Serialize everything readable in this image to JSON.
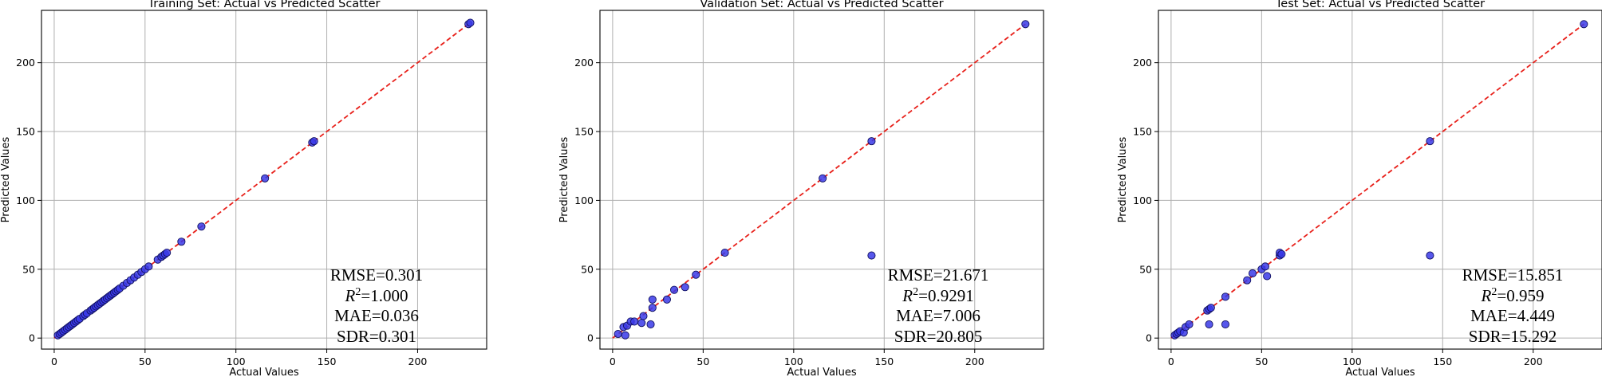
{
  "chart_data": [
    {
      "type": "scatter",
      "title": "Training Set: Actual vs Predicted Scatter",
      "xlabel": "Actual Values",
      "ylabel": "Predicted Values",
      "xlim": [
        -7,
        238
      ],
      "ylim": [
        -8,
        238
      ],
      "xticks": [
        0,
        50,
        100,
        150,
        200
      ],
      "yticks": [
        0,
        50,
        100,
        150,
        200
      ],
      "grid": true,
      "reference_line": "y = x (red dashed)",
      "points": [
        [
          2,
          2
        ],
        [
          3,
          3
        ],
        [
          4,
          4
        ],
        [
          5,
          5
        ],
        [
          6,
          6
        ],
        [
          7,
          7
        ],
        [
          8,
          8
        ],
        [
          9,
          9
        ],
        [
          10,
          10
        ],
        [
          11,
          11
        ],
        [
          12,
          12
        ],
        [
          13,
          13
        ],
        [
          14,
          14
        ],
        [
          16,
          16
        ],
        [
          17,
          17
        ],
        [
          18,
          18
        ],
        [
          20,
          20
        ],
        [
          21,
          21
        ],
        [
          22,
          22
        ],
        [
          23,
          23
        ],
        [
          24,
          24
        ],
        [
          25,
          25
        ],
        [
          26,
          26
        ],
        [
          27,
          27
        ],
        [
          28,
          28
        ],
        [
          29,
          29
        ],
        [
          30,
          30
        ],
        [
          31,
          31
        ],
        [
          32,
          32
        ],
        [
          33,
          33
        ],
        [
          34,
          34
        ],
        [
          35,
          35
        ],
        [
          36,
          36
        ],
        [
          38,
          38
        ],
        [
          40,
          40
        ],
        [
          42,
          42
        ],
        [
          44,
          44
        ],
        [
          46,
          46
        ],
        [
          48,
          48
        ],
        [
          50,
          50
        ],
        [
          52,
          52
        ],
        [
          57,
          57
        ],
        [
          59,
          59
        ],
        [
          60,
          60
        ],
        [
          61,
          61
        ],
        [
          62,
          62
        ],
        [
          70,
          70
        ],
        [
          81,
          81
        ],
        [
          116,
          116
        ],
        [
          142,
          142
        ],
        [
          143,
          143
        ],
        [
          228,
          228
        ],
        [
          229,
          229
        ]
      ],
      "metrics": {
        "rmse": "RMSE=0.301",
        "r2": "=1.000",
        "mae": "MAE=0.036",
        "sdr": "SDR=0.301"
      }
    },
    {
      "type": "scatter",
      "title": "Validation Set: Actual vs Predicted Scatter",
      "xlabel": "Actual Values",
      "ylabel": "Predicted Values",
      "xlim": [
        -7,
        238
      ],
      "ylim": [
        -8,
        238
      ],
      "xticks": [
        0,
        50,
        100,
        150,
        200
      ],
      "yticks": [
        0,
        50,
        100,
        150,
        200
      ],
      "grid": true,
      "reference_line": "y = x (red dashed)",
      "points": [
        [
          3,
          3
        ],
        [
          6,
          8
        ],
        [
          7,
          2
        ],
        [
          8,
          9
        ],
        [
          10,
          12
        ],
        [
          12,
          12
        ],
        [
          16,
          11
        ],
        [
          17,
          16
        ],
        [
          21,
          10
        ],
        [
          22,
          22
        ],
        [
          22,
          28
        ],
        [
          30,
          28
        ],
        [
          34,
          35
        ],
        [
          40,
          37
        ],
        [
          46,
          46
        ],
        [
          62,
          62
        ],
        [
          116,
          116
        ],
        [
          143,
          143
        ],
        [
          143,
          60
        ],
        [
          228,
          228
        ]
      ],
      "metrics": {
        "rmse": "RMSE=21.671",
        "r2": "=0.9291",
        "mae": "MAE=7.006",
        "sdr": "SDR=20.805"
      }
    },
    {
      "type": "scatter",
      "title": "Test Set: Actual vs Predicted Scatter",
      "xlabel": "Actual Values",
      "ylabel": "Predicted Values",
      "xlim": [
        -7,
        238
      ],
      "ylim": [
        -8,
        238
      ],
      "xticks": [
        0,
        50,
        100,
        150,
        200
      ],
      "yticks": [
        0,
        50,
        100,
        150,
        200
      ],
      "grid": true,
      "reference_line": "y = x (red dashed)",
      "points": [
        [
          2,
          2
        ],
        [
          3,
          3
        ],
        [
          4,
          4
        ],
        [
          5,
          5
        ],
        [
          7,
          4
        ],
        [
          8,
          8
        ],
        [
          10,
          10
        ],
        [
          20,
          20
        ],
        [
          21,
          21
        ],
        [
          22,
          22
        ],
        [
          21,
          10
        ],
        [
          30,
          10
        ],
        [
          30,
          30
        ],
        [
          42,
          42
        ],
        [
          45,
          47
        ],
        [
          50,
          50
        ],
        [
          52,
          52
        ],
        [
          53,
          45
        ],
        [
          60,
          60
        ],
        [
          60,
          62
        ],
        [
          61,
          61
        ],
        [
          143,
          143
        ],
        [
          143,
          60
        ],
        [
          228,
          228
        ]
      ],
      "metrics": {
        "rmse": "RMSE=15.851",
        "r2": "=0.959",
        "mae": "MAE=4.449",
        "sdr": "SDR=15.292"
      }
    }
  ],
  "colors": {
    "point_fill": "#3a3ae8",
    "point_edge": "#101060",
    "reference_line": "#e8201a",
    "grid": "#b0b0b0",
    "axes": "#000000"
  }
}
